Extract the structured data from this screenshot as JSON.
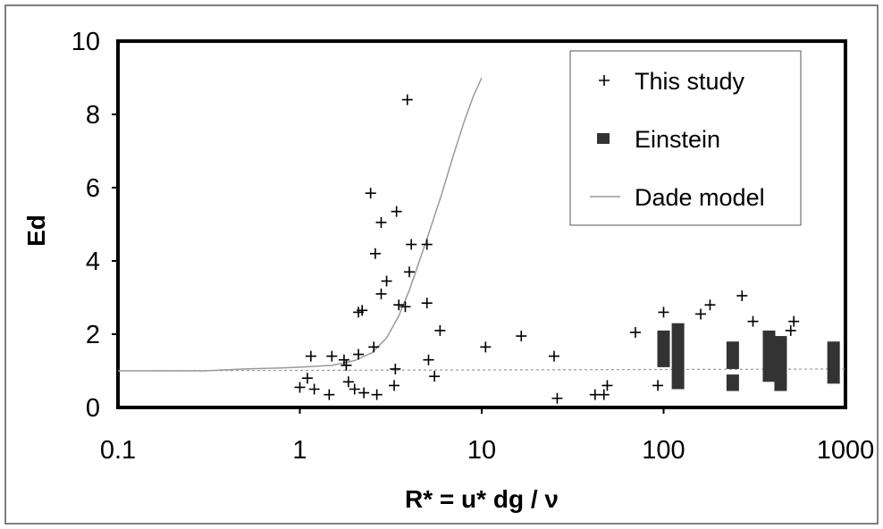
{
  "chart_data": {
    "type": "scatter",
    "xscale": "log",
    "xlim": [
      0.1,
      1000
    ],
    "ylim": [
      0,
      10
    ],
    "x_ticks": [
      "0.1",
      "1",
      "10",
      "100",
      "1000"
    ],
    "y_ticks": [
      "0",
      "2",
      "4",
      "6",
      "8",
      "10"
    ],
    "xlabel": "R* = u* dg / ν",
    "ylabel": "Ed",
    "grid": false,
    "legend_position": "top-right",
    "series": [
      {
        "name": "This study",
        "kind": "plus-marker",
        "color": "#000000",
        "points": [
          [
            1.0,
            0.55
          ],
          [
            1.1,
            0.8
          ],
          [
            1.15,
            1.4
          ],
          [
            1.2,
            0.5
          ],
          [
            1.45,
            0.35
          ],
          [
            1.5,
            1.4
          ],
          [
            1.75,
            1.3
          ],
          [
            1.8,
            1.15
          ],
          [
            1.85,
            0.7
          ],
          [
            2.0,
            0.5
          ],
          [
            2.1,
            1.45
          ],
          [
            2.1,
            2.6
          ],
          [
            2.2,
            2.65
          ],
          [
            2.25,
            0.4
          ],
          [
            2.45,
            5.85
          ],
          [
            2.55,
            1.65
          ],
          [
            2.6,
            4.2
          ],
          [
            2.65,
            0.35
          ],
          [
            2.8,
            5.05
          ],
          [
            2.8,
            3.1
          ],
          [
            3.0,
            3.45
          ],
          [
            3.3,
            0.6
          ],
          [
            3.35,
            1.05
          ],
          [
            3.4,
            5.35
          ],
          [
            3.5,
            2.8
          ],
          [
            3.8,
            2.75
          ],
          [
            3.9,
            8.4
          ],
          [
            4.0,
            3.7
          ],
          [
            4.1,
            4.45
          ],
          [
            5.0,
            2.85
          ],
          [
            5.0,
            4.45
          ],
          [
            5.1,
            1.3
          ],
          [
            5.5,
            0.85
          ],
          [
            5.9,
            2.1
          ],
          [
            10.5,
            1.65
          ],
          [
            16.5,
            1.95
          ],
          [
            25,
            1.4
          ],
          [
            26,
            0.25
          ],
          [
            42,
            0.35
          ],
          [
            47,
            0.35
          ],
          [
            49,
            0.6
          ],
          [
            70,
            2.05
          ],
          [
            93,
            0.6
          ],
          [
            100,
            2.6
          ],
          [
            160,
            2.55
          ],
          [
            180,
            2.8
          ],
          [
            270,
            3.05
          ],
          [
            310,
            2.35
          ],
          [
            500,
            2.1
          ],
          [
            520,
            2.35
          ]
        ]
      },
      {
        "name": "Einstein",
        "kind": "range-bar",
        "color": "#333333",
        "bars": [
          {
            "x": 100,
            "y_low": 1.1,
            "y_high": 2.1
          },
          {
            "x": 120,
            "y_low": 0.5,
            "y_high": 2.3
          },
          {
            "x": 240,
            "y_low": 1.05,
            "y_high": 1.8
          },
          {
            "x": 240,
            "y_low": 0.45,
            "y_high": 0.9
          },
          {
            "x": 380,
            "y_low": 0.7,
            "y_high": 2.1
          },
          {
            "x": 440,
            "y_low": 0.45,
            "y_high": 1.95
          },
          {
            "x": 860,
            "y_low": 0.65,
            "y_high": 1.8
          }
        ]
      },
      {
        "name": "Dade model",
        "kind": "line",
        "color": "#999999",
        "points": [
          [
            0.1,
            1.0
          ],
          [
            0.3,
            1.0
          ],
          [
            0.5,
            1.05
          ],
          [
            0.8,
            1.08
          ],
          [
            1.0,
            1.1
          ],
          [
            1.5,
            1.15
          ],
          [
            2.0,
            1.28
          ],
          [
            2.5,
            1.5
          ],
          [
            3.0,
            1.9
          ],
          [
            3.5,
            2.5
          ],
          [
            4.0,
            3.2
          ],
          [
            5.0,
            4.6
          ],
          [
            6.0,
            5.8
          ],
          [
            7.0,
            6.9
          ],
          [
            8.0,
            7.8
          ],
          [
            9.0,
            8.5
          ],
          [
            10.0,
            9.0
          ]
        ]
      },
      {
        "kind": "reference-line",
        "style": "dotted",
        "color": "#999999",
        "points": [
          [
            0.1,
            1.0
          ],
          [
            1000,
            1.05
          ]
        ]
      }
    ]
  }
}
